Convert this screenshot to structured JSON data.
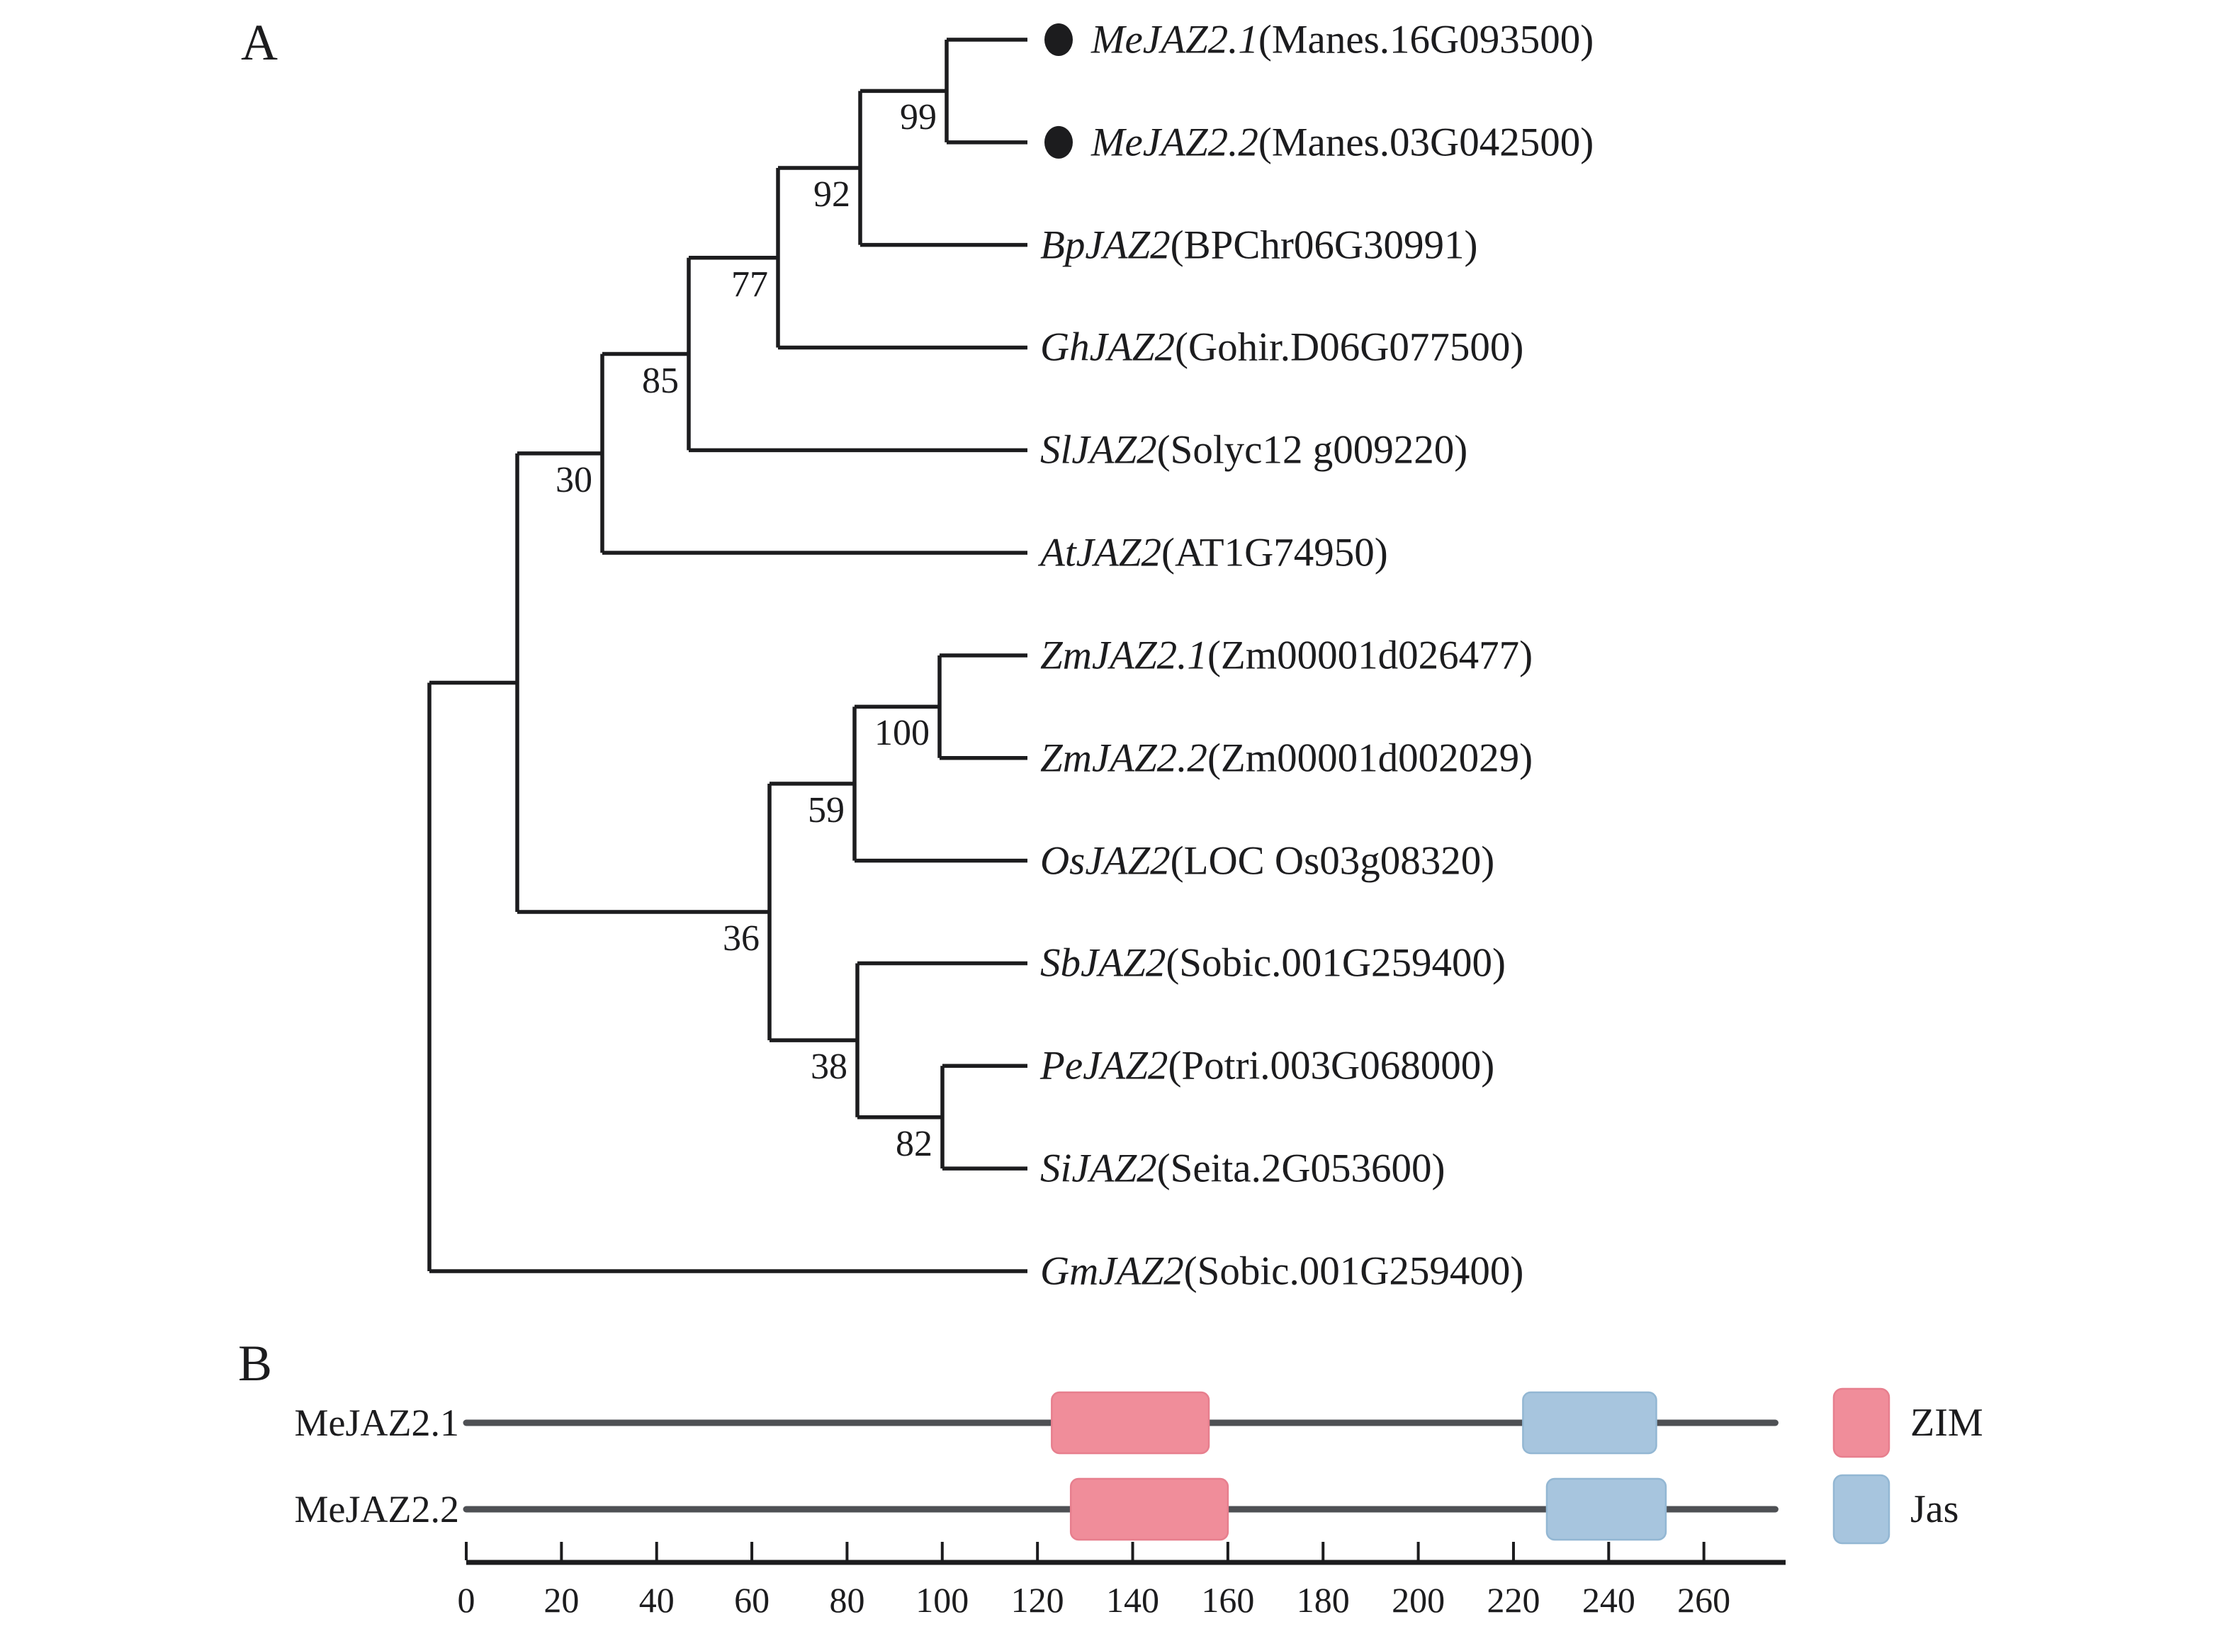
{
  "figure_title": "",
  "panel_a": {
    "label": "A",
    "taxa": [
      {
        "symbol": "MeJAZ2.1",
        "accession": "(Manes.16G093500)",
        "marker": true
      },
      {
        "symbol": "MeJAZ2.2",
        "accession": "(Manes.03G042500)",
        "marker": true
      },
      {
        "symbol": "BpJAZ2",
        "accession": "(BPChr06G30991)",
        "marker": false
      },
      {
        "symbol": "GhJAZ2",
        "accession": "(Gohir.D06G077500)",
        "marker": false
      },
      {
        "symbol": "SlJAZ2",
        "accession": "(Solyc12 g009220)",
        "marker": false
      },
      {
        "symbol": "AtJAZ2",
        "accession": "(AT1G74950)",
        "marker": false
      },
      {
        "symbol": "ZmJAZ2.1",
        "accession": "(Zm00001d026477)",
        "marker": false
      },
      {
        "symbol": "ZmJAZ2.2",
        "accession": "(Zm00001d002029)",
        "marker": false
      },
      {
        "symbol": "OsJAZ2",
        "accession": "(LOC Os03g08320)",
        "marker": false
      },
      {
        "symbol": "SbJAZ2",
        "accession": "(Sobic.001G259400)",
        "marker": false
      },
      {
        "symbol": "PeJAZ2",
        "accession": "(Potri.003G068000)",
        "marker": false
      },
      {
        "symbol": "SiJAZ2",
        "accession": "(Seita.2G053600)",
        "marker": false
      },
      {
        "symbol": "GmJAZ2",
        "accession": "(Sobic.001G259400)",
        "marker": false
      }
    ],
    "tree": {
      "x": 606,
      "children": [
        {
          "x": 730,
          "children": [
            {
              "x": 850,
              "bootstrap": "30",
              "children": [
                {
                  "x": 972,
                  "bootstrap": "85",
                  "children": [
                    {
                      "x": 1098,
                      "bootstrap": "77",
                      "children": [
                        {
                          "x": 1214,
                          "bootstrap": "92",
                          "children": [
                            {
                              "x": 1336,
                              "bootstrap": "99",
                              "children": [
                                {
                                  "leaf": 0
                                },
                                {
                                  "leaf": 1
                                }
                              ]
                            },
                            {
                              "leaf": 2
                            }
                          ]
                        },
                        {
                          "leaf": 3
                        }
                      ]
                    },
                    {
                      "leaf": 4
                    }
                  ]
                },
                {
                  "leaf": 5
                }
              ]
            },
            {
              "x": 1086,
              "bootstrap": "36",
              "children": [
                {
                  "x": 1206,
                  "bootstrap": "59",
                  "children": [
                    {
                      "x": 1326,
                      "bootstrap": "100",
                      "children": [
                        {
                          "leaf": 6
                        },
                        {
                          "leaf": 7
                        }
                      ]
                    },
                    {
                      "leaf": 8
                    }
                  ]
                },
                {
                  "x": 1210,
                  "bootstrap": "38",
                  "children": [
                    {
                      "leaf": 9
                    },
                    {
                      "x": 1330,
                      "bootstrap": "82",
                      "children": [
                        {
                          "leaf": 10
                        },
                        {
                          "leaf": 11
                        }
                      ]
                    }
                  ]
                }
              ]
            }
          ]
        },
        {
          "leaf": 12
        }
      ]
    }
  },
  "panel_b": {
    "label": "B",
    "rows": [
      {
        "label": "MeJAZ2.1",
        "length": 275,
        "domains": [
          {
            "name": "ZIM",
            "start": 123,
            "end": 156
          },
          {
            "name": "Jas",
            "start": 222,
            "end": 250
          }
        ]
      },
      {
        "label": "MeJAZ2.2",
        "length": 275,
        "domains": [
          {
            "name": "ZIM",
            "start": 127,
            "end": 160
          },
          {
            "name": "Jas",
            "start": 227,
            "end": 252
          }
        ]
      }
    ],
    "axis": {
      "ticks": [
        "0",
        "20",
        "40",
        "60",
        "80",
        "100",
        "120",
        "140",
        "160",
        "180",
        "200",
        "220",
        "240",
        "260"
      ]
    },
    "legend": [
      {
        "name": "ZIM",
        "fill": "#f08d9a",
        "stroke": "#e77f8e"
      },
      {
        "name": "Jas",
        "fill": "#a7c5de",
        "stroke": "#93b7d3"
      }
    ]
  },
  "colors": {
    "ink": "#1c1c1e",
    "backbone": "#4e5054",
    "zim_fill": "#f08d9a",
    "zim_stroke": "#e77f8e",
    "jas_fill": "#a7c5de",
    "jas_stroke": "#93b7d3"
  },
  "chart_data": [
    {
      "type": "tree",
      "title": "Phylogenetic tree of JAZ2 proteins",
      "leaves": [
        "MeJAZ2.1(Manes.16G093500)",
        "MeJAZ2.2(Manes.03G042500)",
        "BpJAZ2(BPChr06G30991)",
        "GhJAZ2(Gohir.D06G077500)",
        "SlJAZ2(Solyc12 g009220)",
        "AtJAZ2(AT1G74950)",
        "ZmJAZ2.1(Zm00001d026477)",
        "ZmJAZ2.2(Zm00001d002029)",
        "OsJAZ2(LOC Os03g08320)",
        "SbJAZ2(Sobic.001G259400)",
        "PeJAZ2(Potri.003G068000)",
        "SiJAZ2(Seita.2G053600)",
        "GmJAZ2(Sobic.001G259400)"
      ],
      "bootstrap_values": [
        99,
        92,
        77,
        85,
        30,
        100,
        59,
        36,
        38,
        82
      ],
      "marked_leaves": [
        "MeJAZ2.1(Manes.16G093500)",
        "MeJAZ2.2(Manes.03G042500)"
      ]
    },
    {
      "type": "bar",
      "title": "Protein domain map",
      "categories": [
        "MeJAZ2.1",
        "MeJAZ2.2"
      ],
      "series": [
        {
          "name": "ZIM",
          "ranges": [
            [
              123,
              156
            ],
            [
              127,
              160
            ]
          ]
        },
        {
          "name": "Jas",
          "ranges": [
            [
              222,
              250
            ],
            [
              227,
              252
            ]
          ]
        }
      ],
      "protein_lengths": [
        275,
        275
      ],
      "xlabel": "",
      "ylabel": "",
      "xlim": [
        0,
        275
      ],
      "tick_values": [
        0,
        20,
        40,
        60,
        80,
        100,
        120,
        140,
        160,
        180,
        200,
        220,
        240,
        260
      ],
      "legend_position": "right"
    }
  ]
}
